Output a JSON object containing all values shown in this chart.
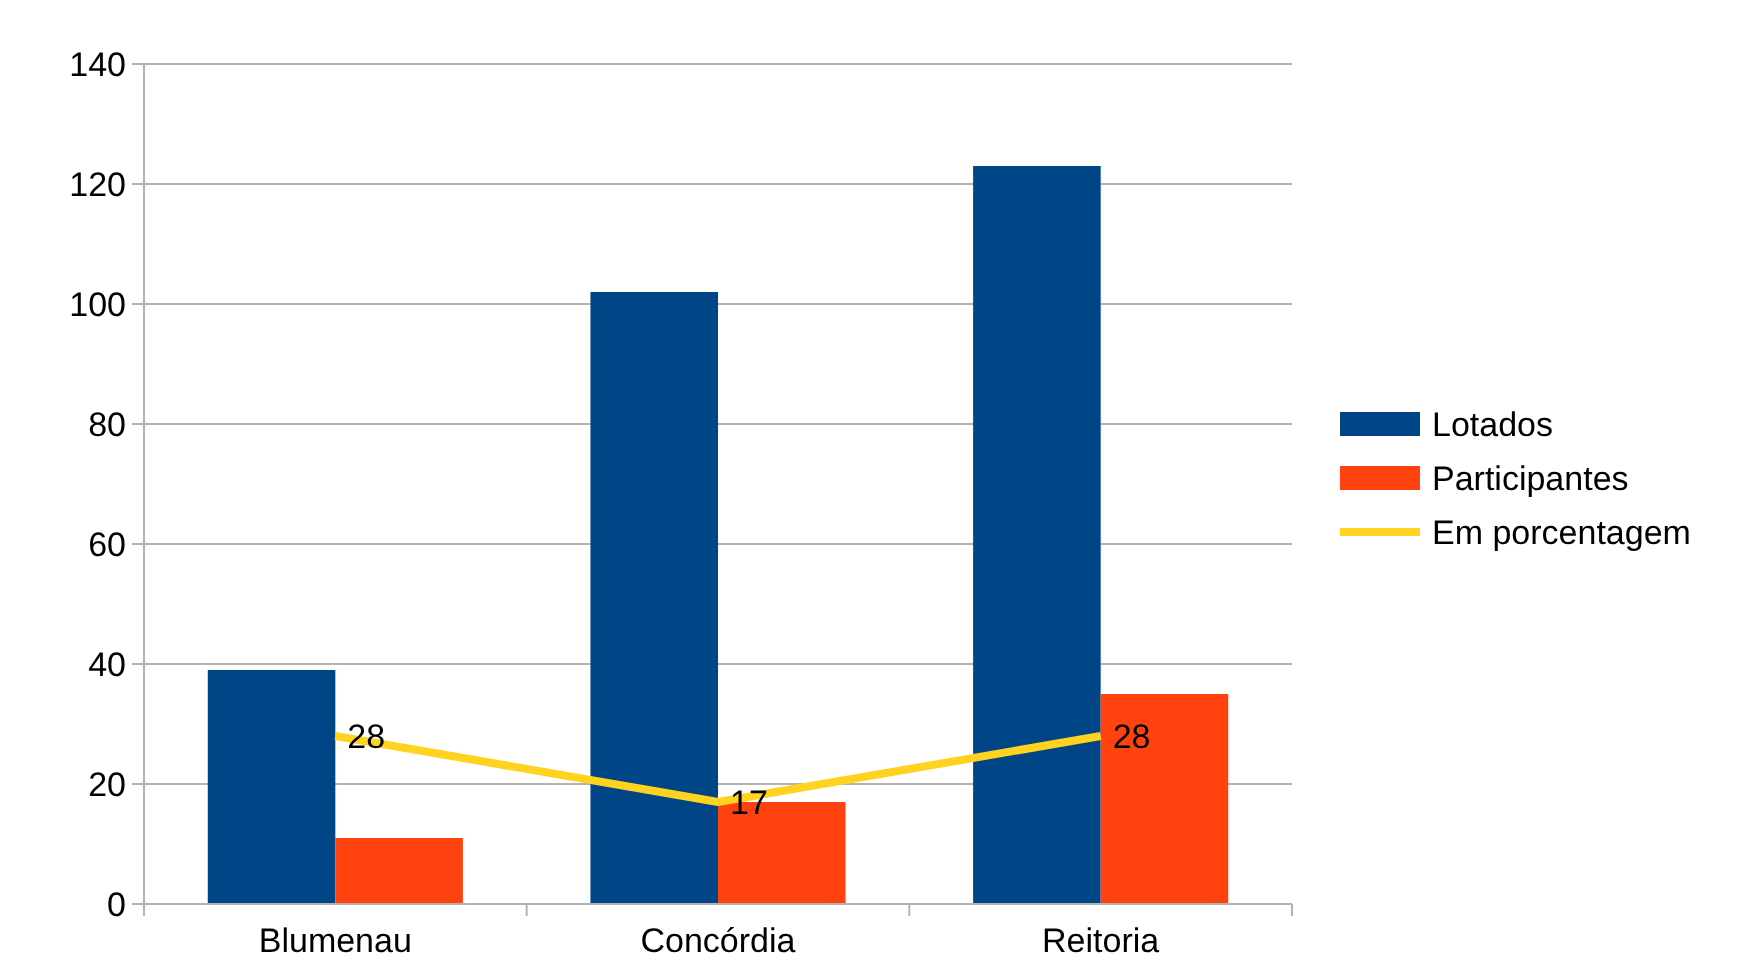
{
  "chart_data": {
    "type": "bar",
    "categories": [
      "Blumenau",
      "Concórdia",
      "Reitoria"
    ],
    "series": [
      {
        "name": "Lotados",
        "color": "#004586",
        "values": [
          39,
          102,
          123
        ]
      },
      {
        "name": "Participantes",
        "color": "#ff420e",
        "values": [
          11,
          17,
          35
        ]
      },
      {
        "name": "Em porcentagem",
        "type": "line",
        "color": "#ffd320",
        "values": [
          28,
          17,
          28
        ],
        "value_labels": [
          "28",
          "17",
          "28"
        ]
      }
    ],
    "ylim": [
      0,
      140
    ],
    "yticks": [
      0,
      20,
      40,
      60,
      80,
      100,
      120,
      140
    ],
    "grid": "y",
    "legend": "right",
    "marker": "none"
  }
}
